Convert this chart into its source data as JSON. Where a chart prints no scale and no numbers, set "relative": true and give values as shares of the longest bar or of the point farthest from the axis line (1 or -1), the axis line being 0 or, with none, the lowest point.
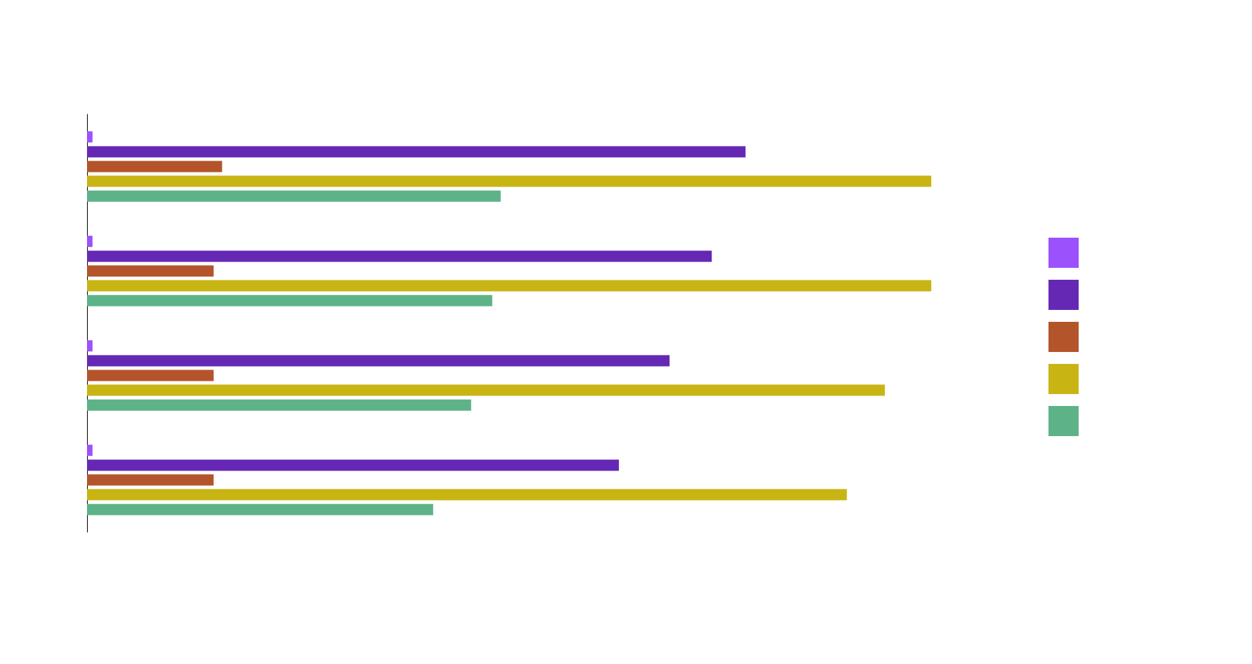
{
  "chart_data": {
    "type": "bar",
    "orientation": "horizontal",
    "relative": true,
    "categories": [
      null,
      null,
      null,
      null
    ],
    "series": [
      {
        "color": "#9b51fb",
        "values": [
          0.0065,
          0.0065,
          0.0065,
          0.0065
        ]
      },
      {
        "color": "#6528b5",
        "values": [
          0.78,
          0.74,
          0.69,
          0.63
        ]
      },
      {
        "color": "#b4542a",
        "values": [
          0.16,
          0.15,
          0.15,
          0.15
        ]
      },
      {
        "color": "#c8b513",
        "values": [
          1,
          1,
          0.945,
          0.9
        ]
      },
      {
        "color": "#5db387",
        "values": [
          0.49,
          0.48,
          0.455,
          0.41
        ]
      }
    ]
  }
}
